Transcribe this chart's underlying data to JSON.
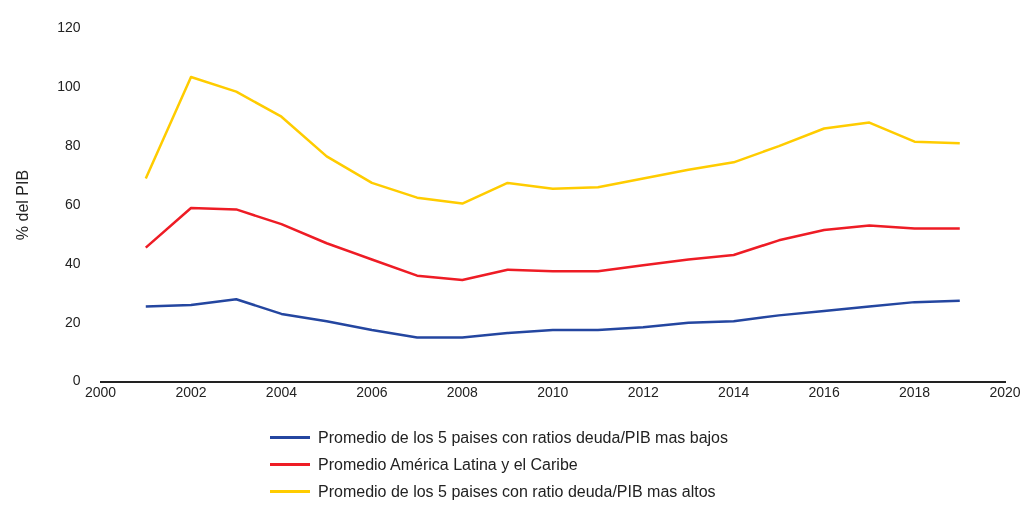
{
  "chart_data": {
    "type": "line",
    "ylabel": "% del PIB",
    "x": [
      2001,
      2002,
      2003,
      2004,
      2005,
      2006,
      2007,
      2008,
      2009,
      2010,
      2011,
      2012,
      2013,
      2014,
      2015,
      2016,
      2017,
      2018,
      2019
    ],
    "series": [
      {
        "name": "Promedio de los 5 paises con ratios deuda/PIB mas bajos",
        "color": "#2446a0",
        "values": [
          25.5,
          26,
          28,
          23,
          20.5,
          17.5,
          15,
          15,
          16.5,
          17.5,
          17.5,
          18.5,
          20,
          20.5,
          22.5,
          24,
          25.5,
          27,
          27.5
        ]
      },
      {
        "name": "Promedio América Latina y el Caribe",
        "color": "#ee1c25",
        "values": [
          45.5,
          59,
          58.5,
          53.5,
          47,
          41.5,
          36,
          34.5,
          38,
          37.5,
          37.5,
          39.5,
          41.5,
          43,
          48,
          51.5,
          53,
          52,
          52
        ]
      },
      {
        "name": "Promedio de los 5 paises con ratio deuda/PIB mas altos",
        "color": "#ffcc00",
        "values": [
          69,
          103.5,
          98.5,
          90,
          76.5,
          67.5,
          62.5,
          60.5,
          67.5,
          65.5,
          66,
          69,
          72,
          74.5,
          80,
          86,
          88,
          81.5,
          81
        ]
      }
    ],
    "xlim": [
      2000,
      2020
    ],
    "xticks": [
      2000,
      2002,
      2004,
      2006,
      2008,
      2010,
      2012,
      2014,
      2016,
      2018,
      2020
    ],
    "ylim": [
      0,
      120
    ],
    "yticks": [
      0,
      20,
      40,
      60,
      80,
      100,
      120
    ],
    "grid": false,
    "legend": "bottom",
    "marker": "none",
    "line_style": "solid"
  }
}
